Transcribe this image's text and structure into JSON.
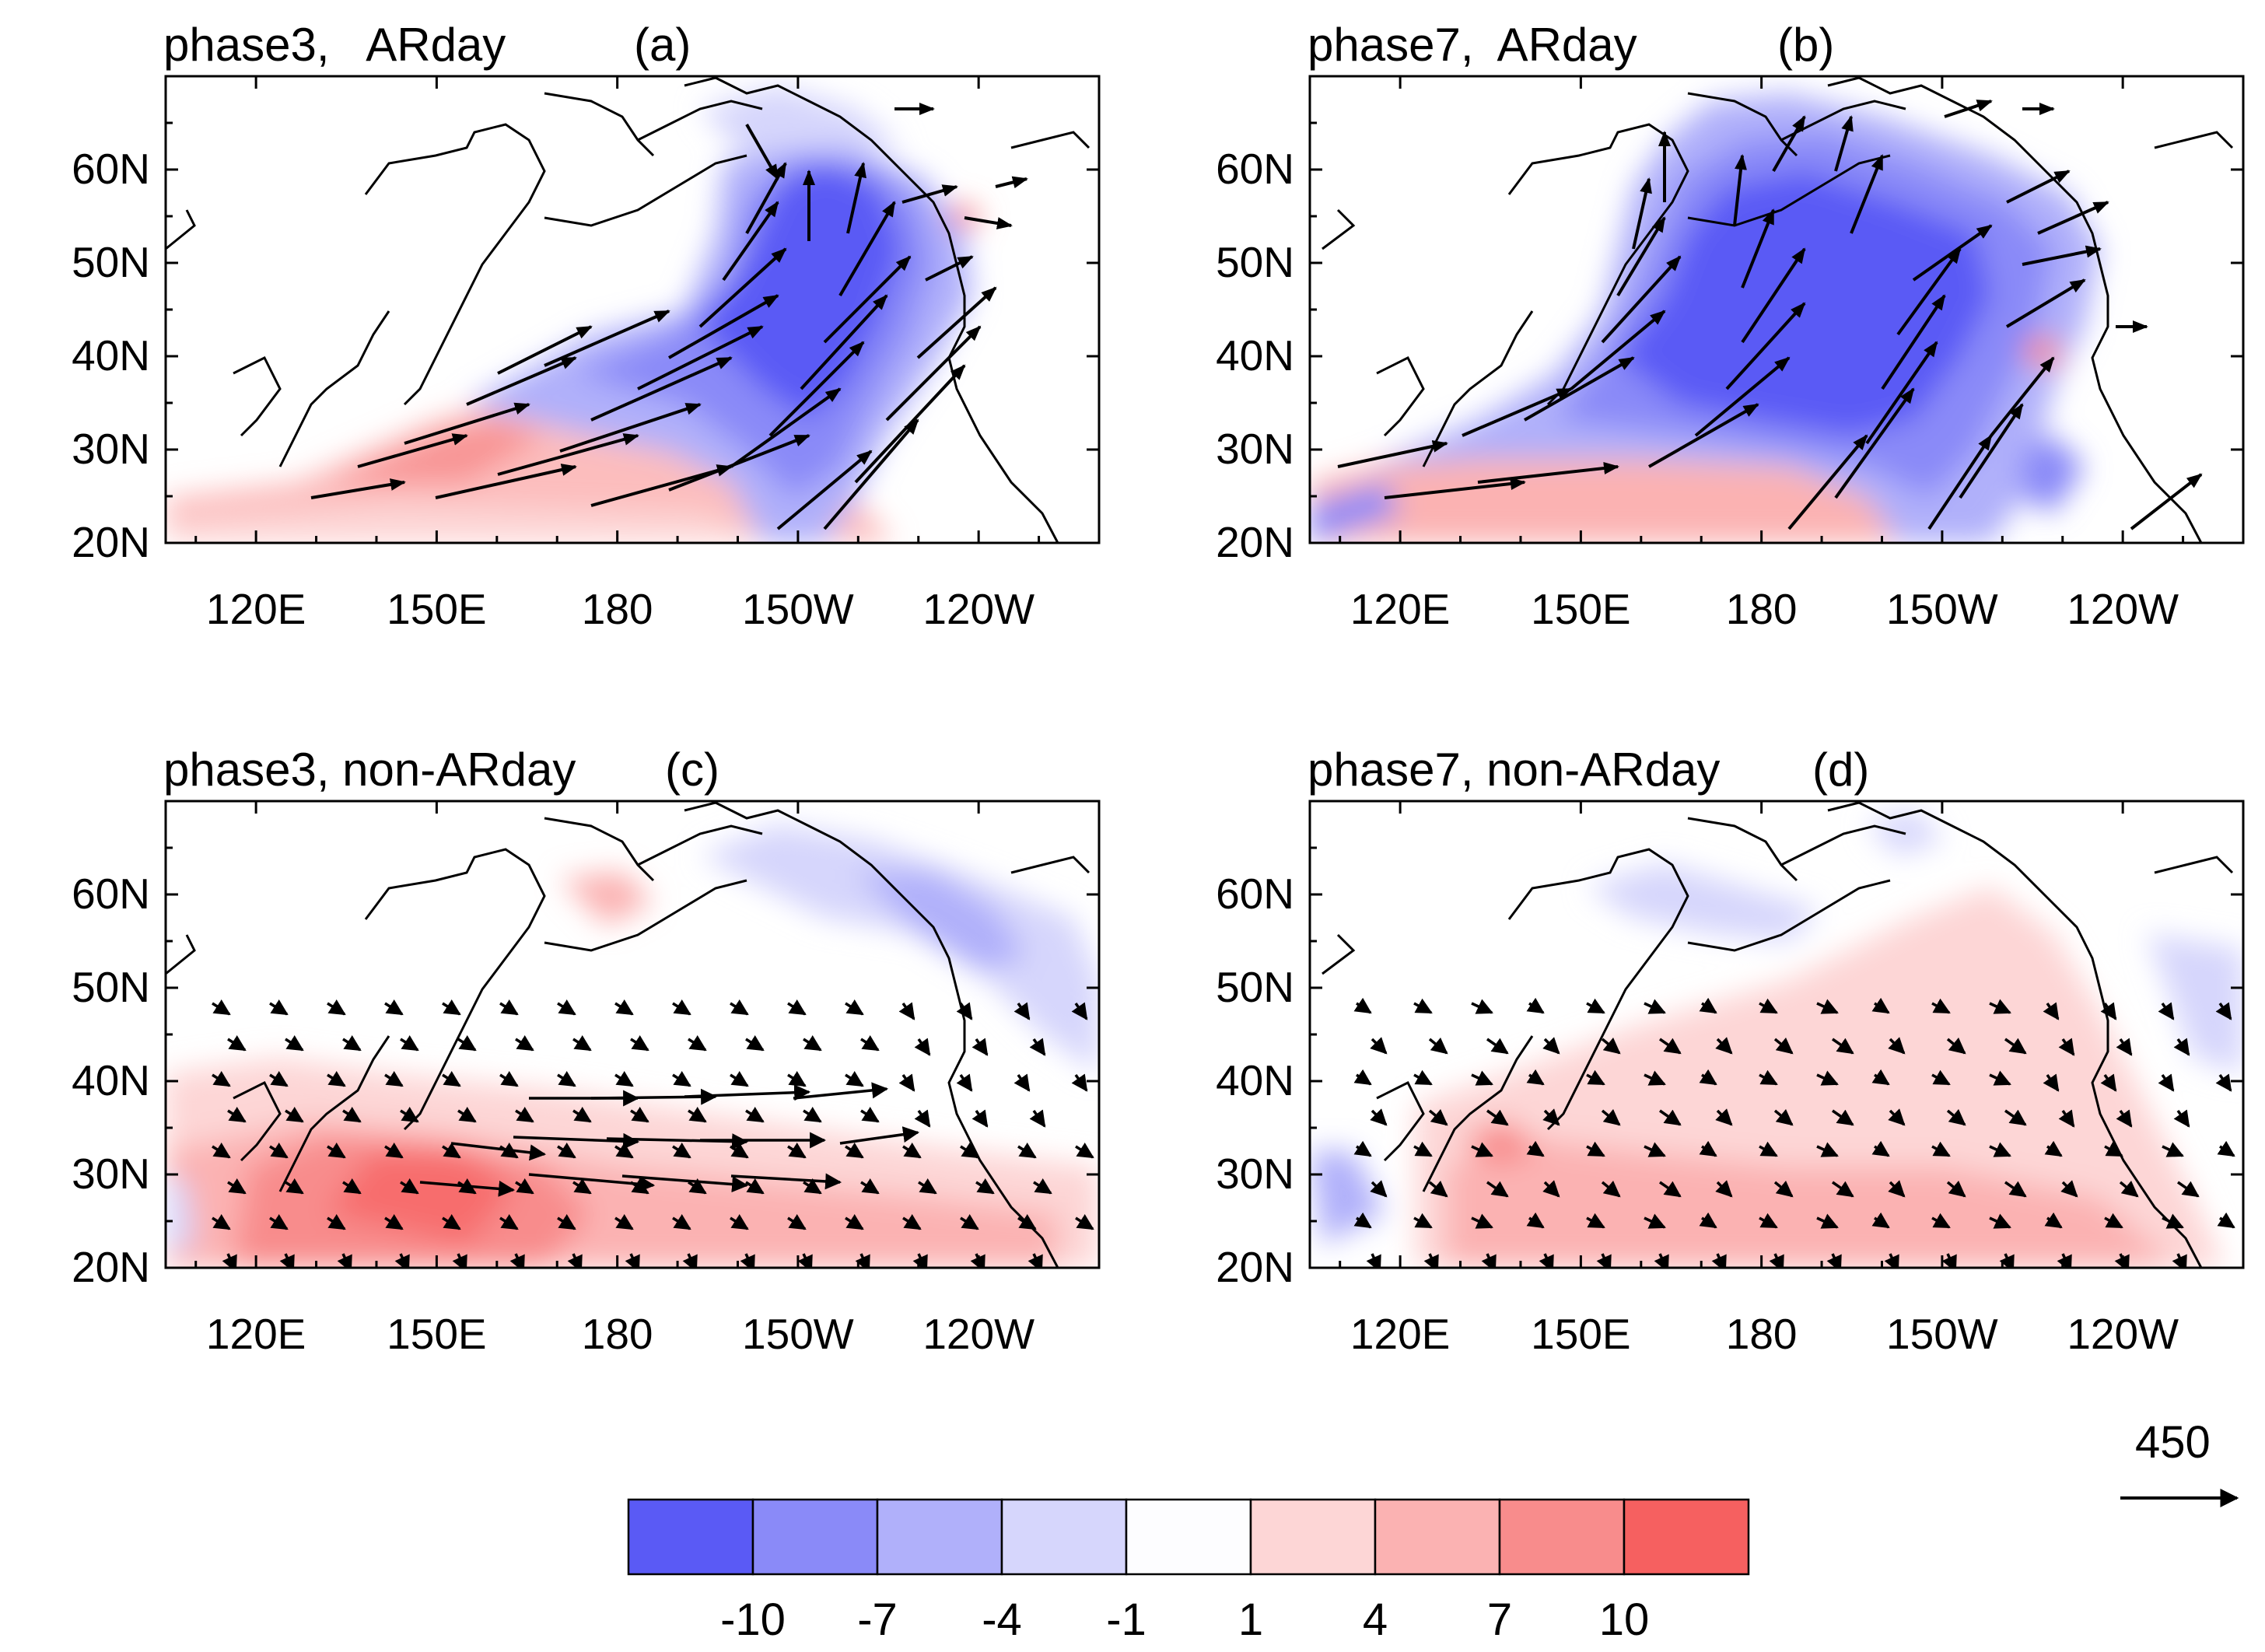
{
  "chart_data": [
    {
      "type": "map-contour-vector",
      "id": "a",
      "title": "phase3,   ARday",
      "letter": "(a)",
      "anomaly_sign": "negative",
      "description_values": {
        "core_anomaly": -10,
        "subtropical_anomaly": 4
      },
      "lon_ticks": [
        "120E",
        "150E",
        "180",
        "150W",
        "120W"
      ],
      "lat_ticks": [
        "60N",
        "50N",
        "40N",
        "30N",
        "20N"
      ],
      "lon_range": [
        105,
        260
      ],
      "lat_range": [
        20,
        70
      ]
    },
    {
      "type": "map-contour-vector",
      "id": "b",
      "title": "phase7,  ARday",
      "letter": "(b)",
      "anomaly_sign": "negative",
      "description_values": {
        "core_anomaly": -10,
        "subtropical_anomaly": 4
      },
      "lon_ticks": [
        "120E",
        "150E",
        "180",
        "150W",
        "120W"
      ],
      "lat_ticks": [
        "60N",
        "50N",
        "40N",
        "30N",
        "20N"
      ],
      "lon_range": [
        105,
        260
      ],
      "lat_range": [
        20,
        70
      ]
    },
    {
      "type": "map-contour-vector",
      "id": "c",
      "title": "phase3, non-ARday",
      "letter": "(c)",
      "anomaly_sign": "positive",
      "description_values": {
        "core_anomaly": 7,
        "subtropical_anomaly": 4
      },
      "lon_ticks": [
        "120E",
        "150E",
        "180",
        "150W",
        "120W"
      ],
      "lat_ticks": [
        "60N",
        "50N",
        "40N",
        "30N",
        "20N"
      ],
      "lon_range": [
        105,
        260
      ],
      "lat_range": [
        20,
        70
      ]
    },
    {
      "type": "map-contour-vector",
      "id": "d",
      "title": "phase7, non-ARday",
      "letter": "(d)",
      "anomaly_sign": "positive",
      "description_values": {
        "core_anomaly": 4,
        "subtropical_anomaly": 1
      },
      "lon_ticks": [
        "120E",
        "150E",
        "180",
        "150W",
        "120W"
      ],
      "lat_ticks": [
        "60N",
        "50N",
        "40N",
        "30N",
        "20N"
      ],
      "lon_range": [
        105,
        260
      ],
      "lat_range": [
        20,
        70
      ]
    }
  ],
  "colorbar": {
    "levels": [
      "-10",
      "-7",
      "-4",
      "-1",
      "1",
      "4",
      "7",
      "10"
    ],
    "colors": [
      "#5a5af5",
      "#8a8af8",
      "#b0b0fa",
      "#d6d6fc",
      "#fdfdff",
      "#fdd6d6",
      "#fbb2b2",
      "#f88c8c",
      "#f66060"
    ]
  },
  "reference_vector": {
    "label": "450"
  },
  "colors": {
    "blue_strong": "#5a5af5",
    "blue_mid": "#8a8af8",
    "blue_light": "#b8b8fa",
    "blue_faint": "#dcdcfd",
    "red_strong": "#f66060",
    "red_mid": "#f88c8c",
    "red_light": "#fbb2b2",
    "red_faint": "#fddada",
    "land": "#fafafa",
    "coast": "#000000",
    "arrow": "#000000"
  }
}
